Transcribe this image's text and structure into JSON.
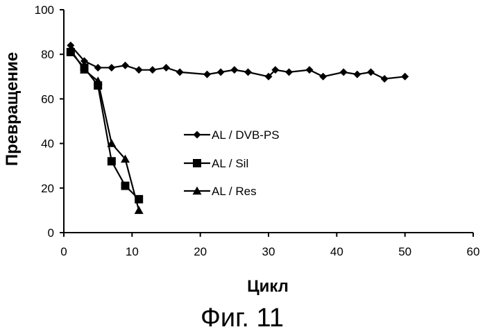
{
  "chart_data": {
    "type": "line",
    "title": "",
    "xlabel": "Цикл",
    "ylabel": "Превращение",
    "xlim": [
      0,
      60
    ],
    "ylim": [
      0,
      100
    ],
    "xticks": [
      0,
      10,
      20,
      30,
      40,
      50,
      60
    ],
    "yticks": [
      0,
      20,
      40,
      60,
      80,
      100
    ],
    "grid": false,
    "legend_position": "center",
    "series": [
      {
        "name": "AL / DVB-PS",
        "marker": "diamond",
        "x": [
          1,
          3,
          5,
          7,
          9,
          11,
          13,
          15,
          17,
          21,
          23,
          25,
          27,
          30,
          31,
          33,
          36,
          38,
          41,
          43,
          45,
          47,
          50
        ],
        "y": [
          84,
          77,
          74,
          74,
          75,
          73,
          73,
          74,
          72,
          71,
          72,
          73,
          72,
          70,
          73,
          72,
          73,
          70,
          72,
          71,
          72,
          69,
          70
        ]
      },
      {
        "name": "AL / Sil",
        "marker": "square",
        "x": [
          1,
          3,
          5,
          7,
          9,
          11
        ],
        "y": [
          81,
          74,
          66,
          32,
          21,
          15
        ]
      },
      {
        "name": "AL / Res",
        "marker": "triangle",
        "x": [
          1,
          3,
          5,
          7,
          9,
          11
        ],
        "y": [
          82,
          73,
          68,
          40,
          33,
          10
        ]
      }
    ]
  },
  "caption": "Фиг. 11"
}
